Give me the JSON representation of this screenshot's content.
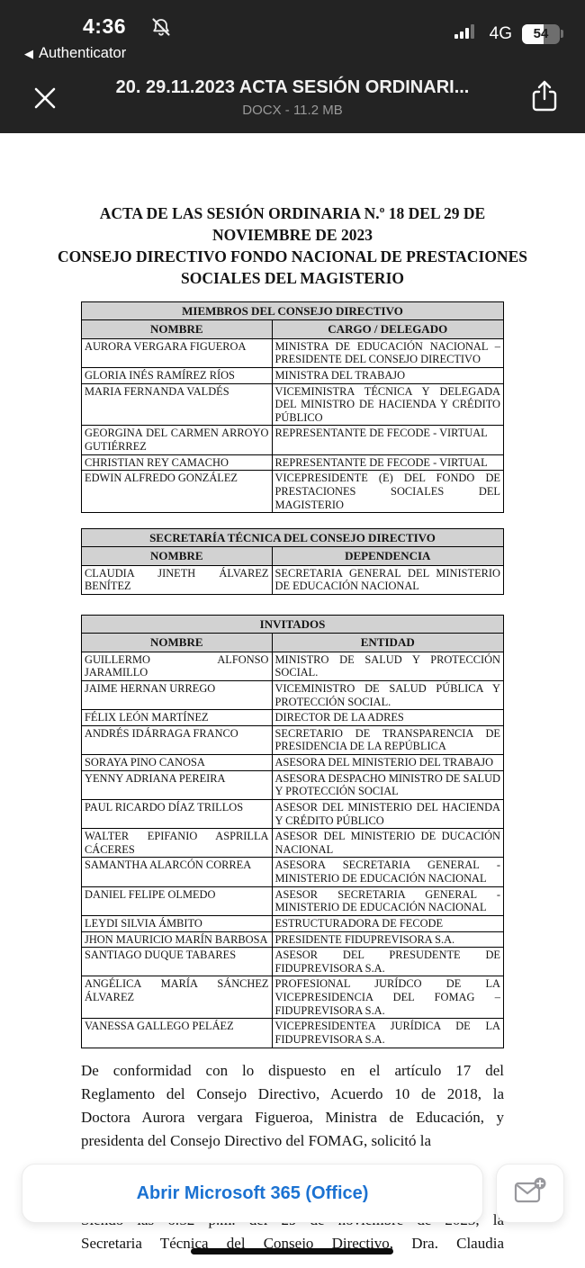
{
  "status_bar": {
    "time": "4:36",
    "back_link": "Authenticator",
    "back_arrow": "◀",
    "network": "4G",
    "battery_percent": "54"
  },
  "viewer_header": {
    "title": "20. 29.11.2023 ACTA SESIÓN ORDINARI...",
    "subtitle": "DOCX - 11.2 MB"
  },
  "document": {
    "title_lines": [
      "ACTA DE LAS SESIÓN ORDINARIA N.º 18 DEL 29 DE",
      "NOVIEMBRE DE 2023",
      "CONSEJO DIRECTIVO FONDO NACIONAL DE PRESTACIONES",
      "SOCIALES DEL MAGISTERIO"
    ],
    "tables": [
      {
        "title": "MIEMBROS DEL CONSEJO DIRECTIVO",
        "columns": [
          "NOMBRE",
          "CARGO / DELEGADO"
        ],
        "rows": [
          [
            "AURORA VERGARA FIGUEROA",
            "MINISTRA DE EDUCACIÓN NACIONAL – PRESIDENTE DEL CONSEJO DIRECTIVO"
          ],
          [
            "GLORIA INÉS RAMÍREZ RÍOS",
            "MINISTRA DEL TRABAJO"
          ],
          [
            "MARIA FERNANDA VALDÉS",
            "VICEMINISTRA TÉCNICA Y DELEGADA DEL MINISTRO DE HACIENDA Y CRÉDITO PÚBLICO"
          ],
          [
            "GEORGINA DEL CARMEN ARROYO GUTIÉRREZ",
            "REPRESENTANTE DE FECODE - VIRTUAL"
          ],
          [
            "CHRISTIAN REY CAMACHO",
            "REPRESENTANTE DE FECODE - VIRTUAL"
          ],
          [
            "EDWIN ALFREDO GONZÁLEZ",
            "VICEPRESIDENTE (E) DEL FONDO DE PRESTACIONES SOCIALES DEL MAGISTERIO"
          ]
        ]
      },
      {
        "title": "SECRETARÍA TÉCNICA DEL CONSEJO DIRECTIVO",
        "columns": [
          "NOMBRE",
          "DEPENDENCIA"
        ],
        "rows": [
          [
            "CLAUDIA JINETH ÁLVAREZ BENÍTEZ",
            "SECRETARIA GENERAL DEL MINISTERIO DE EDUCACIÓN NACIONAL"
          ]
        ]
      },
      {
        "title": "INVITADOS",
        "columns": [
          "NOMBRE",
          "ENTIDAD"
        ],
        "rows": [
          [
            "GUILLERMO ALFONSO JARAMILLO",
            "MINISTRO DE SALUD Y PROTECCIÓN SOCIAL."
          ],
          [
            "JAIME HERNAN URREGO",
            "VICEMINISTRO DE SALUD PÚBLICA Y PROTECCIÓN SOCIAL."
          ],
          [
            "FÉLIX LEÓN MARTÍNEZ",
            "DIRECTOR DE LA ADRES"
          ],
          [
            "ANDRÉS IDÁRRAGA FRANCO",
            "SECRETARIO DE TRANSPARENCIA DE PRESIDENCIA DE LA REPÚBLICA"
          ],
          [
            "SORAYA PINO CANOSA",
            "ASESORA DEL MINISTERIO DEL TRABAJO"
          ],
          [
            "YENNY ADRIANA PEREIRA",
            "ASESORA DESPACHO MINISTRO DE SALUD Y PROTECCIÓN SOCIAL"
          ],
          [
            "PAUL RICARDO DÍAZ TRILLOS",
            "ASESOR DEL MINISTERIO DEL HACIENDA Y CRÉDITO PÚBLICO"
          ],
          [
            "WALTER EPIFANIO ASPRILLA CÁCERES",
            "ASESOR DEL MINISTERIO DE DUCACIÓN NACIONAL"
          ],
          [
            "SAMANTHA ALARCÓN CORREA",
            "ASESORA SECRETARIA GENERAL - MINISTERIO DE EDUCACIÓN NACIONAL"
          ],
          [
            "DANIEL FELIPE OLMEDO",
            "ASESOR SECRETARIA GENERAL - MINISTERIO DE EDUCACIÓN NACIONAL"
          ],
          [
            "LEYDI SILVIA ÁMBITO",
            "ESTRUCTURADORA DE FECODE"
          ],
          [
            "JHON MAURICIO MARÍN BARBOSA",
            "PRESIDENTE FIDUPREVISORA S.A."
          ],
          [
            "SANTIAGO DUQUE TABARES",
            "ASESOR DEL PRESUDENTE DE FIDUPREVISORA S.A."
          ],
          [
            "ANGÉLICA MARÍA SÁNCHEZ ÁLVAREZ",
            "PROFESIONAL JURÍDCO DE LA VICEPRESIDENCIA DEL FOMAG – FIDUPREVISORA S.A."
          ],
          [
            "VANESSA GALLEGO PELÁEZ",
            "VICEPRESIDENTEA JURÍDICA DE LA FIDUPREVISORA S.A."
          ]
        ]
      }
    ],
    "paragraph1_lines": [
      "De conformidad con lo dispuesto en el artículo 17 del",
      "Reglamento del Consejo Directivo, Acuerdo 10 de 2018, la",
      "Doctora Aurora vergara Figueroa, Ministra de Educación, y",
      "presidenta del Consejo Directivo del FOMAG, solicitó la"
    ],
    "paragraph2_lines": [
      "Siendo las 6:52 p.m. del 29 de noviembre de 2023, la",
      "Secretaria Técnica del Consejo Directivo, Dra. Claudia"
    ]
  },
  "footer": {
    "open_button_label": "Abrir Microsoft 365 (Office)"
  },
  "colors": {
    "topbar_bg": "#232323",
    "accent_blue": "#1b72d2",
    "table_header_gray": "#d2d2d2",
    "icon_gray": "#98989d"
  }
}
